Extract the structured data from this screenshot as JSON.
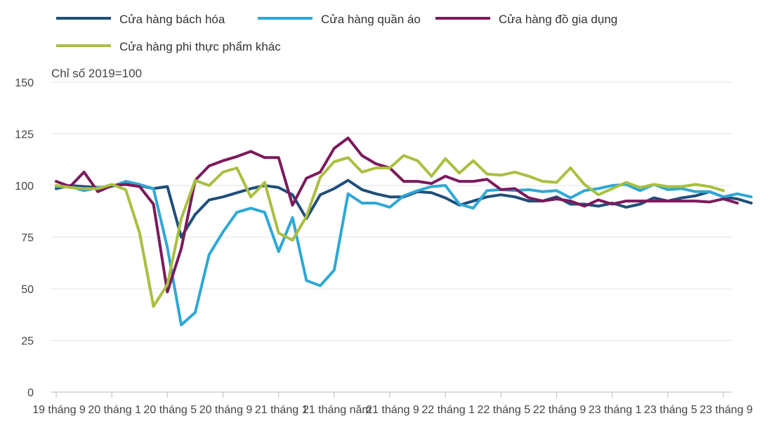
{
  "chart_data": {
    "type": "line",
    "ylabel": "Chỉ số 2019=100",
    "ylim": [
      0,
      150
    ],
    "y_ticks": [
      0,
      25,
      50,
      75,
      100,
      125,
      150
    ],
    "x_tick_labels": [
      "19 tháng 9",
      "20 tháng 1",
      "20 tháng 5",
      "20 tháng 9",
      "21 tháng 1",
      "21 tháng năm",
      "21 tháng 9",
      "22 tháng 1",
      "22 tháng 5",
      "22 tháng 9",
      "23 tháng 1",
      "23 tháng 5",
      "23 tháng 9"
    ],
    "x_start": "2019-09",
    "x_end": "2023-09",
    "grid": true,
    "legend_position": "top-left",
    "series": [
      {
        "name": "Cửa hàng bách hóa",
        "color": "#1f4e79",
        "values": [
          98.5,
          100,
          99.5,
          99,
          99.5,
          101.5,
          100,
          98.5,
          99.5,
          75,
          86,
          93,
          94.5,
          96.5,
          98.5,
          100,
          99,
          95.5,
          84,
          95.5,
          98.5,
          102.5,
          98,
          96,
          94.5,
          94.5,
          97,
          96.5,
          94,
          90.5,
          92.5,
          94.5,
          95.5,
          94.5,
          92.5,
          92.5,
          94.5,
          91,
          91,
          90,
          91.5,
          89.5,
          91,
          94,
          92.5,
          94,
          95,
          97,
          94.5,
          93.5,
          91.5
        ]
      },
      {
        "name": "Cửa hàng quần áo",
        "color": "#2fa8d4",
        "values": [
          99.5,
          99.5,
          97.5,
          99,
          99.5,
          102,
          100.5,
          98.5,
          70,
          32.5,
          38.5,
          66.5,
          77.5,
          87,
          89,
          87,
          68,
          84.5,
          54,
          51.5,
          59,
          96,
          91.5,
          91.5,
          89.5,
          95,
          97.5,
          99.5,
          100,
          91,
          89,
          97.5,
          98,
          97.5,
          98,
          97,
          97.5,
          94,
          97.5,
          98.5,
          100,
          100.5,
          97.5,
          100.5,
          98,
          98.5,
          97,
          97,
          94.5,
          96,
          94.5
        ]
      },
      {
        "name": "Cửa hàng đồ gia dụng",
        "color": "#7b1a5c",
        "values": [
          102,
          99.5,
          106.5,
          97,
          100,
          100.5,
          99.5,
          91,
          48.5,
          69.5,
          102.5,
          109.5,
          112,
          114,
          116.5,
          113.5,
          113.5,
          90.5,
          103.5,
          106.5,
          118,
          123,
          114.5,
          110.5,
          108.5,
          102,
          102,
          101,
          104.5,
          102,
          102,
          103,
          98,
          98.5,
          94,
          92.5,
          93.5,
          92.5,
          90,
          93,
          91,
          92.5,
          92.5,
          92.5,
          92.5,
          92.5,
          92.5,
          92,
          93.5,
          91.5
        ]
      },
      {
        "name": "Cửa hàng phi thực phẩm khác",
        "color": "#a8c040",
        "values": [
          100,
          99,
          98.5,
          98.5,
          100.5,
          98,
          77,
          41.5,
          52,
          84,
          102.5,
          100,
          106.5,
          108.5,
          94.5,
          101.5,
          77,
          73.5,
          85,
          104,
          111.5,
          113.5,
          106.5,
          108.5,
          108.5,
          114.5,
          112,
          104.5,
          113,
          106,
          112,
          105.5,
          105,
          106.5,
          104.5,
          102,
          101.5,
          108.5,
          100.5,
          95.5,
          98.5,
          101.5,
          99,
          100.5,
          99.5,
          99.5,
          100.5,
          99.5,
          97.5
        ]
      }
    ]
  }
}
